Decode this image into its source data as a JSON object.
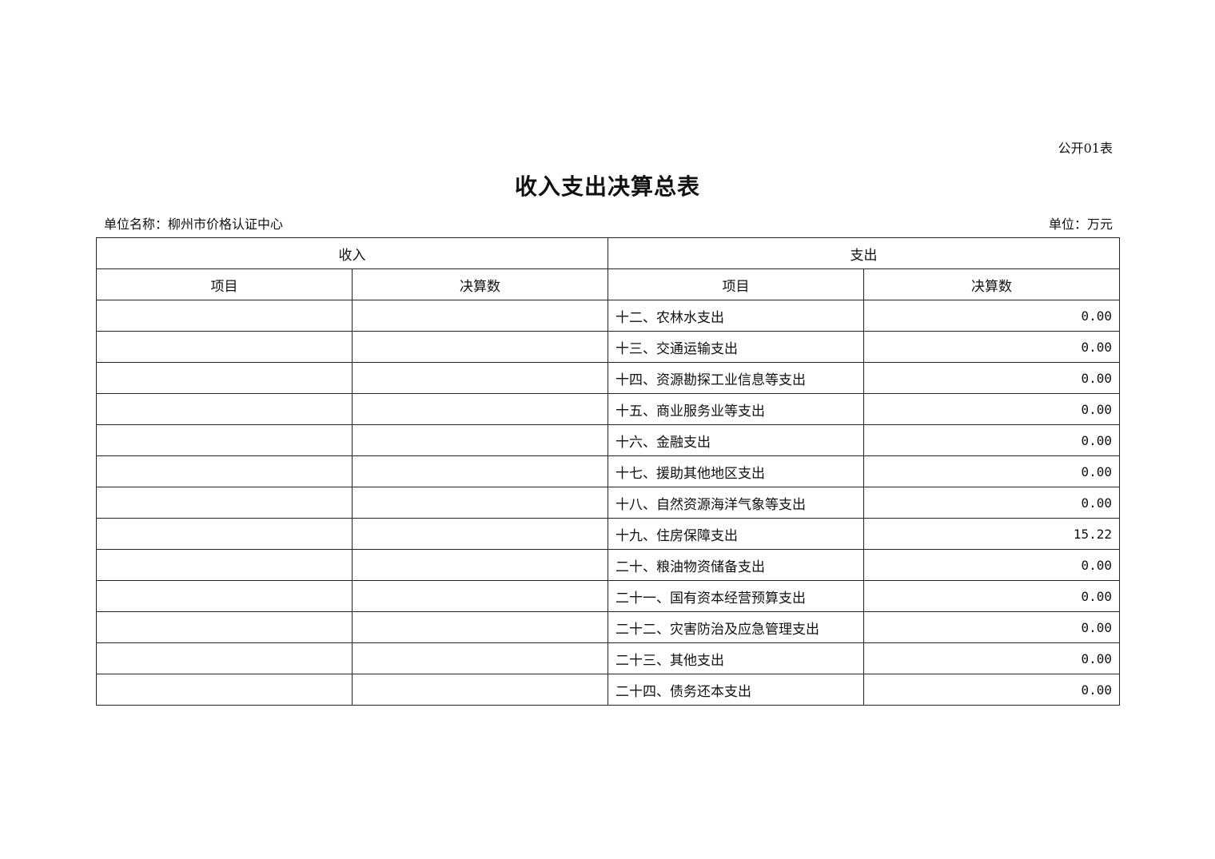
{
  "form_no": "公开01表",
  "title": "收入支出决算总表",
  "unit_name": "单位名称：柳州市价格认证中心",
  "unit": "单位：万元",
  "table": {
    "group_headers": [
      "收入",
      "支出"
    ],
    "column_headers": [
      "项目",
      "决算数",
      "项目",
      "决算数"
    ],
    "rows": [
      {
        "income_item": "",
        "income_amount": "",
        "expense_item": "十二、农林水支出",
        "expense_amount": "0.00"
      },
      {
        "income_item": "",
        "income_amount": "",
        "expense_item": "十三、交通运输支出",
        "expense_amount": "0.00"
      },
      {
        "income_item": "",
        "income_amount": "",
        "expense_item": "十四、资源勘探工业信息等支出",
        "expense_amount": "0.00"
      },
      {
        "income_item": "",
        "income_amount": "",
        "expense_item": "十五、商业服务业等支出",
        "expense_amount": "0.00"
      },
      {
        "income_item": "",
        "income_amount": "",
        "expense_item": "十六、金融支出",
        "expense_amount": "0.00"
      },
      {
        "income_item": "",
        "income_amount": "",
        "expense_item": "十七、援助其他地区支出",
        "expense_amount": "0.00"
      },
      {
        "income_item": "",
        "income_amount": "",
        "expense_item": "十八、自然资源海洋气象等支出",
        "expense_amount": "0.00"
      },
      {
        "income_item": "",
        "income_amount": "",
        "expense_item": "十九、住房保障支出",
        "expense_amount": "15.22"
      },
      {
        "income_item": "",
        "income_amount": "",
        "expense_item": "二十、粮油物资储备支出",
        "expense_amount": "0.00"
      },
      {
        "income_item": "",
        "income_amount": "",
        "expense_item": "二十一、国有资本经营预算支出",
        "expense_amount": "0.00"
      },
      {
        "income_item": "",
        "income_amount": "",
        "expense_item": "二十二、灾害防治及应急管理支出",
        "expense_amount": "0.00"
      },
      {
        "income_item": "",
        "income_amount": "",
        "expense_item": "二十三、其他支出",
        "expense_amount": "0.00"
      },
      {
        "income_item": "",
        "income_amount": "",
        "expense_item": "二十四、债务还本支出",
        "expense_amount": "0.00"
      }
    ]
  }
}
